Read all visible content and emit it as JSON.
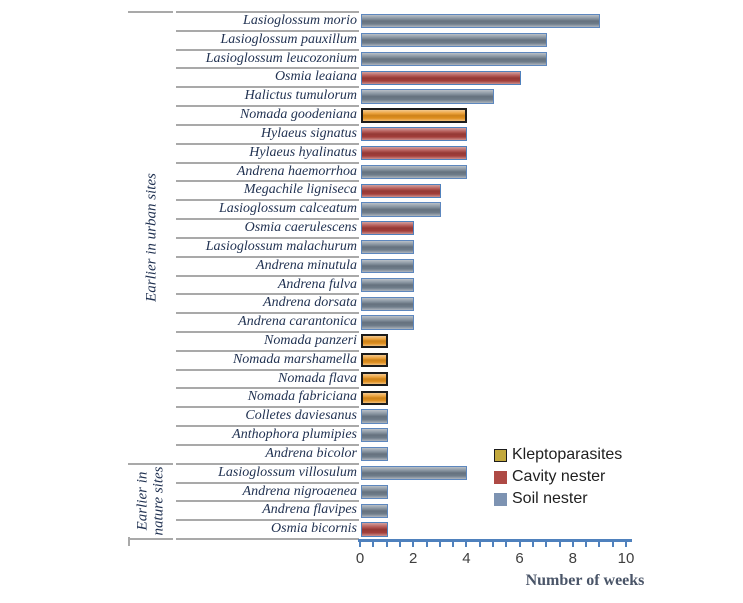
{
  "chart_data": {
    "type": "bar",
    "orientation": "horizontal",
    "xlabel": "Number of weeks",
    "xlim": [
      0,
      10
    ],
    "xticks": [
      0,
      2,
      4,
      6,
      8,
      10
    ],
    "minor_tick_step": 0.5,
    "grid": false,
    "legend_position": "inside-right",
    "colors": {
      "axis_line": "#4F81BD",
      "separator_line": "#A9A9A9",
      "species_label": "#1F3050",
      "group_label": "#1F3050",
      "tick_label": "#3F3F3F",
      "axis_title": "#4A5568"
    },
    "groups": [
      {
        "label": "Earlier in urban sites",
        "lines": [
          "Earlier in urban sites"
        ],
        "count": 24
      },
      {
        "label": "Earlier in nature sites",
        "lines": [
          "Earlier in",
          "nature sites"
        ],
        "count": 4
      }
    ],
    "nest_types": [
      {
        "id": "klepto",
        "label": "Kleptoparasites",
        "bar_fill": "#E8941F",
        "bar_border": "#1C1C1C",
        "bar_border_width": 2,
        "swatch_fill": "#C2A83D",
        "swatch_border": "#1C1C1C"
      },
      {
        "id": "cavity",
        "label": "Cavity nester",
        "bar_fill": "#A8403C",
        "bar_border": "#4F81BD",
        "bar_border_width": 1,
        "swatch_fill": "#AE4A45",
        "swatch_border": "#AE4A45"
      },
      {
        "id": "soil",
        "label": "Soil nester",
        "bar_fill": "#73818F",
        "bar_border": "#5D87BE",
        "bar_border_width": 1,
        "swatch_fill": "#7D93B2",
        "swatch_border": "#7D93B2"
      }
    ],
    "bars": [
      {
        "species": "Lasioglossum morio",
        "value": 9,
        "type": "soil"
      },
      {
        "species": "Lasioglossum pauxillum",
        "value": 7,
        "type": "soil"
      },
      {
        "species": "Lasioglossum leucozonium",
        "value": 7,
        "type": "soil"
      },
      {
        "species": "Osmia leaiana",
        "value": 6,
        "type": "cavity"
      },
      {
        "species": "Halictus tumulorum",
        "value": 5,
        "type": "soil"
      },
      {
        "species": "Nomada goodeniana",
        "value": 4,
        "type": "klepto"
      },
      {
        "species": "Hylaeus signatus",
        "value": 4,
        "type": "cavity"
      },
      {
        "species": "Hylaeus hyalinatus",
        "value": 4,
        "type": "cavity"
      },
      {
        "species": "Andrena haemorrhoa",
        "value": 4,
        "type": "soil"
      },
      {
        "species": "Megachile ligniseca",
        "value": 3,
        "type": "cavity"
      },
      {
        "species": "Lasioglossum calceatum",
        "value": 3,
        "type": "soil"
      },
      {
        "species": "Osmia caerulescens",
        "value": 2,
        "type": "cavity"
      },
      {
        "species": "Lasioglossum malachurum",
        "value": 2,
        "type": "soil"
      },
      {
        "species": "Andrena minutula",
        "value": 2,
        "type": "soil"
      },
      {
        "species": "Andrena fulva",
        "value": 2,
        "type": "soil"
      },
      {
        "species": "Andrena dorsata",
        "value": 2,
        "type": "soil"
      },
      {
        "species": "Andrena carantonica",
        "value": 2,
        "type": "soil"
      },
      {
        "species": "Nomada panzeri",
        "value": 1,
        "type": "klepto"
      },
      {
        "species": "Nomada marshamella",
        "value": 1,
        "type": "klepto"
      },
      {
        "species": "Nomada flava",
        "value": 1,
        "type": "klepto"
      },
      {
        "species": "Nomada fabriciana",
        "value": 1,
        "type": "klepto"
      },
      {
        "species": "Colletes daviesanus",
        "value": 1,
        "type": "soil"
      },
      {
        "species": "Anthophora plumipies",
        "value": 1,
        "type": "soil"
      },
      {
        "species": "Andrena bicolor",
        "value": 1,
        "type": "soil"
      },
      {
        "species": "Lasioglossum villosulum",
        "value": 4,
        "type": "soil"
      },
      {
        "species": "Andrena nigroaenea",
        "value": 1,
        "type": "soil"
      },
      {
        "species": "Andrena flavipes",
        "value": 1,
        "type": "soil"
      },
      {
        "species": "Osmia bicornis",
        "value": 1,
        "type": "cavity"
      }
    ]
  }
}
